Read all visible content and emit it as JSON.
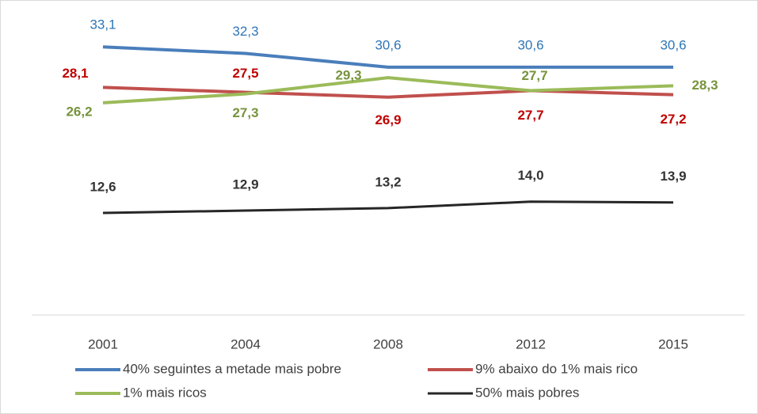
{
  "chart_data": {
    "type": "line",
    "categories": [
      "2001",
      "2004",
      "2008",
      "2012",
      "2015"
    ],
    "ylim": [
      0,
      38.5
    ],
    "series": [
      {
        "name": "40% seguintes a metade mais pobre",
        "color": "#4a7ebb",
        "label_color": "#2e75b6",
        "values": [
          33.1,
          32.3,
          30.6,
          30.6,
          30.6
        ],
        "value_labels": [
          "33,1",
          "32,3",
          "30,6",
          "30,6",
          "30,6"
        ]
      },
      {
        "name": "9% abaixo do 1% mais rico",
        "color": "#c0504d",
        "label_color": "#c00000",
        "values": [
          28.1,
          27.5,
          26.9,
          27.7,
          27.2
        ],
        "value_labels": [
          "28,1",
          "27,5",
          "26,9",
          "27,7",
          "27,2"
        ]
      },
      {
        "name": "1% mais ricos",
        "color": "#9bbb59",
        "label_color": "#77933c",
        "values": [
          26.2,
          27.3,
          29.3,
          27.7,
          28.3
        ],
        "value_labels": [
          "26,2",
          "27,3",
          "29,3",
          "27,7",
          "28,3"
        ]
      },
      {
        "name": "50% mais pobres",
        "color": "#262626",
        "label_color": "#333333",
        "values": [
          12.6,
          12.9,
          13.2,
          14.0,
          13.9
        ],
        "value_labels": [
          "12,6",
          "12,9",
          "13,2",
          "14,0",
          "13,9"
        ]
      }
    ]
  }
}
